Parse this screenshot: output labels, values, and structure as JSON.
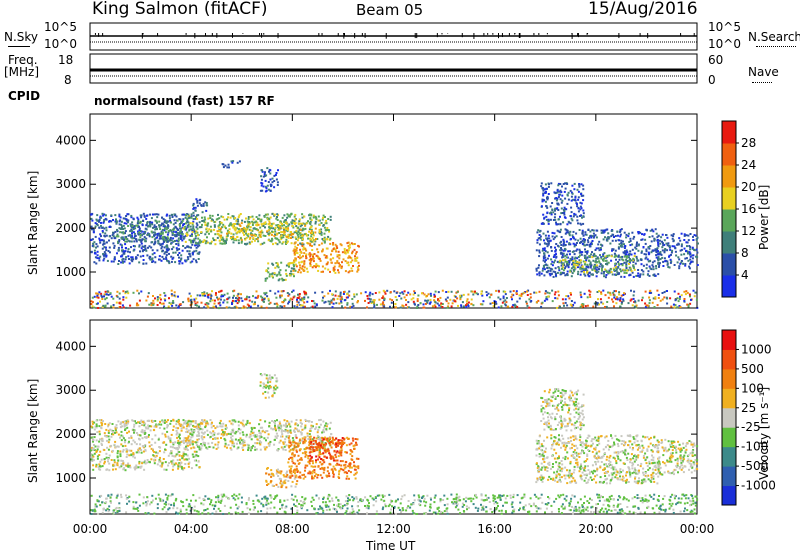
{
  "header": {
    "site": "King Salmon (fitACF)",
    "beam": "Beam 05",
    "date": "15/Aug/2016"
  },
  "aux": {
    "nsky_label": "N.Sky",
    "nsky_ticks": [
      "10^5",
      "10^0"
    ],
    "nsearch_label": "N.Search",
    "nsearch_ticks": [
      "10^5",
      "10^0"
    ],
    "freq_label": "Freq.",
    "freq_unit": "[MHz]",
    "freq_ticks": [
      "18",
      "8"
    ],
    "nave_label": "Nave",
    "nave_ticks": [
      "60",
      "0"
    ],
    "cpid_label": "CPID",
    "cpid_value": "normalsound (fast) 157 RF"
  },
  "chart_data": [
    {
      "type": "heatmap",
      "name": "power",
      "ylabel": "Slant Range [km]",
      "ylim": [
        180,
        4600
      ],
      "xlim": [
        0,
        24
      ],
      "yticks": [
        1000,
        2000,
        3000,
        4000
      ],
      "colorbar": {
        "label": "Power [dB]",
        "ticks": [
          4,
          8,
          12,
          16,
          20,
          24,
          28
        ],
        "colors": [
          "#1a2fe8",
          "#2b4fa8",
          "#3f7f7a",
          "#5aa65a",
          "#e8d020",
          "#f09a10",
          "#f06010",
          "#e81a10"
        ],
        "range": [
          0,
          32
        ]
      },
      "clusters": [
        {
          "t0": 0.0,
          "t1": 4.3,
          "r0": 1200,
          "r1": 2350,
          "level": 1
        },
        {
          "t0": 1.0,
          "t1": 3.6,
          "r0": 1700,
          "r1": 2200,
          "level": 2
        },
        {
          "t0": 3.6,
          "t1": 9.5,
          "r0": 1650,
          "r1": 2350,
          "level": 3
        },
        {
          "t0": 5.0,
          "t1": 8.9,
          "r0": 1750,
          "r1": 2150,
          "level": 4
        },
        {
          "t0": 6.9,
          "t1": 8.1,
          "r0": 800,
          "r1": 1250,
          "level": 3
        },
        {
          "t0": 8.0,
          "t1": 10.6,
          "r0": 1000,
          "r1": 1700,
          "level": 5
        },
        {
          "t0": 4.0,
          "t1": 4.6,
          "r0": 2350,
          "r1": 2700,
          "level": 1
        },
        {
          "t0": 5.2,
          "t1": 5.9,
          "r0": 3400,
          "r1": 3550,
          "level": 1
        },
        {
          "t0": 6.7,
          "t1": 7.4,
          "r0": 2850,
          "r1": 3400,
          "level": 1
        },
        {
          "t0": 17.6,
          "t1": 22.5,
          "r0": 900,
          "r1": 2000,
          "level": 1
        },
        {
          "t0": 18.5,
          "t1": 21.5,
          "r0": 1000,
          "r1": 1400,
          "level": 3
        },
        {
          "t0": 17.8,
          "t1": 19.5,
          "r0": 2100,
          "r1": 3050,
          "level": 1
        },
        {
          "t0": 22.4,
          "t1": 24.0,
          "r0": 1100,
          "r1": 1900,
          "level": 1
        },
        {
          "t0": 0.0,
          "t1": 24.0,
          "r0": 200,
          "r1": 600,
          "level": 0
        }
      ]
    },
    {
      "type": "heatmap",
      "name": "velocity",
      "ylabel": "Slant Range [km]",
      "ylim": [
        180,
        4600
      ],
      "xlim": [
        0,
        24
      ],
      "yticks": [
        1000,
        2000,
        3000,
        4000
      ],
      "xticks": [
        "00:00",
        "04:00",
        "08:00",
        "12:00",
        "16:00",
        "20:00",
        "00:00"
      ],
      "xlabel": "Time UT",
      "colorbar": {
        "label": "Velocity [m s⁻¹]",
        "ticks": [
          "1000",
          "500",
          "100",
          "25",
          "-25",
          "-100",
          "-500",
          "-1000"
        ],
        "colors": [
          "#1a2fd8",
          "#2f5fb0",
          "#3c8a8a",
          "#60c040",
          "#c8c8c0",
          "#f0b020",
          "#f08010",
          "#f05010",
          "#e81010"
        ]
      },
      "clusters": [
        {
          "t0": 0.0,
          "t1": 4.3,
          "r0": 1200,
          "r1": 2350,
          "level": 4
        },
        {
          "t0": 3.6,
          "t1": 9.5,
          "r0": 1650,
          "r1": 2350,
          "level": 4
        },
        {
          "t0": 6.9,
          "t1": 8.2,
          "r0": 800,
          "r1": 1250,
          "level": 5
        },
        {
          "t0": 7.8,
          "t1": 10.6,
          "r0": 1000,
          "r1": 1950,
          "level": 6
        },
        {
          "t0": 8.6,
          "t1": 10.0,
          "r0": 1400,
          "r1": 1950,
          "level": 7
        },
        {
          "t0": 6.7,
          "t1": 7.4,
          "r0": 2850,
          "r1": 3400,
          "level": 4
        },
        {
          "t0": 17.6,
          "t1": 22.5,
          "r0": 900,
          "r1": 2000,
          "level": 4
        },
        {
          "t0": 22.4,
          "t1": 24.0,
          "r0": 1100,
          "r1": 1900,
          "level": 4
        },
        {
          "t0": 17.8,
          "t1": 19.5,
          "r0": 2100,
          "r1": 3050,
          "level": 4
        },
        {
          "t0": 0.0,
          "t1": 24.0,
          "r0": 200,
          "r1": 650,
          "level": 3
        }
      ]
    }
  ]
}
